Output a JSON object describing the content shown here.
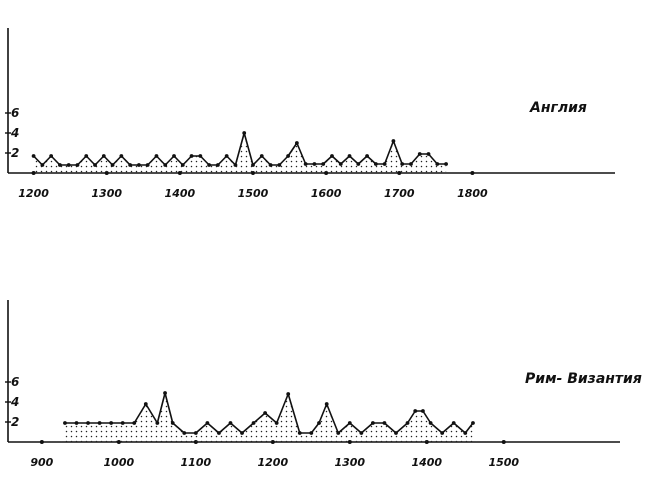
{
  "chart_data": [
    {
      "type": "area",
      "series_name": "Англия",
      "x_ticks": [
        "1200",
        "1300",
        "1400",
        "1500",
        "1600",
        "1700",
        "1800"
      ],
      "y_ticks": [
        "2",
        "4",
        "6"
      ],
      "xlim": [
        1165,
        1995
      ],
      "ylim": [
        0,
        9
      ],
      "grid": false,
      "x": [
        1200,
        1212,
        1224,
        1236,
        1248,
        1260,
        1272,
        1284,
        1296,
        1308,
        1320,
        1332,
        1344,
        1356,
        1368,
        1380,
        1392,
        1404,
        1416,
        1428,
        1440,
        1452,
        1464,
        1476,
        1488,
        1500,
        1512,
        1524,
        1536,
        1548,
        1560,
        1572,
        1584,
        1596,
        1608,
        1620,
        1632,
        1644,
        1656,
        1668,
        1680,
        1692,
        1704,
        1716,
        1728,
        1740,
        1752,
        1764
      ],
      "values": [
        1.7,
        0.8,
        1.7,
        0.8,
        0.8,
        0.8,
        1.7,
        0.8,
        1.7,
        0.8,
        1.7,
        0.8,
        0.8,
        0.8,
        1.7,
        0.8,
        1.7,
        0.8,
        1.7,
        1.7,
        0.8,
        0.8,
        1.7,
        0.8,
        4.0,
        0.8,
        1.7,
        0.8,
        0.8,
        1.7,
        3.0,
        0.9,
        0.9,
        0.9,
        1.7,
        0.9,
        1.7,
        0.9,
        1.7,
        0.9,
        0.9,
        3.2,
        0.9,
        0.9,
        1.9,
        1.9,
        0.9,
        0.9
      ]
    },
    {
      "type": "area",
      "series_name": "Рим- Византия",
      "x_ticks": [
        "900",
        "1000",
        "1100",
        "1200",
        "1300",
        "1400",
        "1500"
      ],
      "y_ticks": [
        "2",
        "4",
        "6"
      ],
      "xlim": [
        856,
        1651
      ],
      "ylim": [
        0,
        9
      ],
      "grid": false,
      "x": [
        930,
        945,
        960,
        975,
        990,
        1005,
        1020,
        1035,
        1050,
        1060,
        1070,
        1085,
        1100,
        1115,
        1130,
        1145,
        1160,
        1175,
        1190,
        1205,
        1220,
        1235,
        1250,
        1260,
        1270,
        1285,
        1300,
        1315,
        1330,
        1345,
        1360,
        1375,
        1385,
        1395,
        1405,
        1420,
        1435,
        1450,
        1460
      ],
      "values": [
        1.9,
        1.9,
        1.9,
        1.9,
        1.9,
        1.9,
        1.9,
        3.8,
        1.9,
        4.9,
        1.9,
        0.9,
        0.9,
        1.9,
        0.9,
        1.9,
        0.9,
        1.9,
        2.9,
        1.9,
        4.8,
        0.9,
        0.9,
        1.9,
        3.8,
        0.9,
        1.9,
        0.9,
        1.9,
        1.9,
        0.9,
        1.9,
        3.1,
        3.1,
        1.9,
        0.9,
        1.9,
        0.9,
        1.9
      ]
    }
  ]
}
